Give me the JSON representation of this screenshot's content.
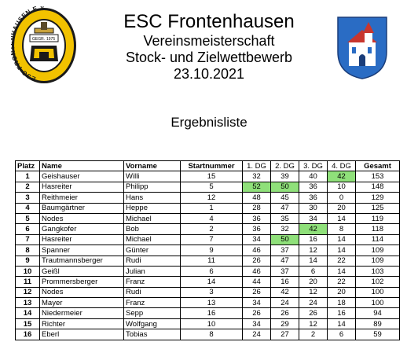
{
  "header": {
    "club": "ESC Frontenhausen",
    "line1": "Vereinsmeisterschaft",
    "line2": "Stock- und Zielwettbewerb",
    "date": "23.10.2021"
  },
  "logo": {
    "ring_text": "ESC-FRONTENHAUSEN E.V.",
    "founded": "GEGR. 1975"
  },
  "list_title": "Ergebnisliste",
  "highlight_color": "#8fe07a",
  "table": {
    "columns": [
      "Platz",
      "Name",
      "Vorname",
      "Startnummer",
      "1. DG",
      "2. DG",
      "3. DG",
      "4. DG",
      "Gesamt"
    ],
    "rows": [
      {
        "platz": "1",
        "name": "Geishauser",
        "vorname": "Willi",
        "start": "15",
        "dg1": "32",
        "dg2": "39",
        "dg3": "40",
        "dg4": "42",
        "total": "153",
        "hl": [
          false,
          false,
          false,
          true
        ]
      },
      {
        "platz": "2",
        "name": "Hasreiter",
        "vorname": "Philipp",
        "start": "5",
        "dg1": "52",
        "dg2": "50",
        "dg3": "36",
        "dg4": "10",
        "total": "148",
        "hl": [
          true,
          true,
          false,
          false
        ]
      },
      {
        "platz": "3",
        "name": "Reithmeier",
        "vorname": "Hans",
        "start": "12",
        "dg1": "48",
        "dg2": "45",
        "dg3": "36",
        "dg4": "0",
        "total": "129",
        "hl": [
          false,
          false,
          false,
          false
        ]
      },
      {
        "platz": "4",
        "name": "Baumgärtner",
        "vorname": "Heppe",
        "start": "1",
        "dg1": "28",
        "dg2": "47",
        "dg3": "30",
        "dg4": "20",
        "total": "125",
        "hl": [
          false,
          false,
          false,
          false
        ]
      },
      {
        "platz": "5",
        "name": "Nodes",
        "vorname": "Michael",
        "start": "4",
        "dg1": "36",
        "dg2": "35",
        "dg3": "34",
        "dg4": "14",
        "total": "119",
        "hl": [
          false,
          false,
          false,
          false
        ]
      },
      {
        "platz": "6",
        "name": "Gangkofer",
        "vorname": "Bob",
        "start": "2",
        "dg1": "36",
        "dg2": "32",
        "dg3": "42",
        "dg4": "8",
        "total": "118",
        "hl": [
          false,
          false,
          true,
          false
        ]
      },
      {
        "platz": "7",
        "name": "Hasreiter",
        "vorname": "Michael",
        "start": "7",
        "dg1": "34",
        "dg2": "50",
        "dg3": "16",
        "dg4": "14",
        "total": "114",
        "hl": [
          false,
          true,
          false,
          false
        ]
      },
      {
        "platz": "8",
        "name": "Spanner",
        "vorname": "Günter",
        "start": "9",
        "dg1": "46",
        "dg2": "37",
        "dg3": "12",
        "dg4": "14",
        "total": "109",
        "hl": [
          false,
          false,
          false,
          false
        ]
      },
      {
        "platz": "9",
        "name": "Trautmannsberger",
        "vorname": "Rudi",
        "start": "11",
        "dg1": "26",
        "dg2": "47",
        "dg3": "14",
        "dg4": "22",
        "total": "109",
        "hl": [
          false,
          false,
          false,
          false
        ]
      },
      {
        "platz": "10",
        "name": "Geißl",
        "vorname": "Julian",
        "start": "6",
        "dg1": "46",
        "dg2": "37",
        "dg3": "6",
        "dg4": "14",
        "total": "103",
        "hl": [
          false,
          false,
          false,
          false
        ]
      },
      {
        "platz": "11",
        "name": "Prommersberger",
        "vorname": "Franz",
        "start": "14",
        "dg1": "44",
        "dg2": "16",
        "dg3": "20",
        "dg4": "22",
        "total": "102",
        "hl": [
          false,
          false,
          false,
          false
        ]
      },
      {
        "platz": "12",
        "name": "Nodes",
        "vorname": "Rudi",
        "start": "3",
        "dg1": "26",
        "dg2": "42",
        "dg3": "12",
        "dg4": "20",
        "total": "100",
        "hl": [
          false,
          false,
          false,
          false
        ]
      },
      {
        "platz": "13",
        "name": "Mayer",
        "vorname": "Franz",
        "start": "13",
        "dg1": "34",
        "dg2": "24",
        "dg3": "24",
        "dg4": "18",
        "total": "100",
        "hl": [
          false,
          false,
          false,
          false
        ]
      },
      {
        "platz": "14",
        "name": "Niedermeier",
        "vorname": "Sepp",
        "start": "16",
        "dg1": "26",
        "dg2": "26",
        "dg3": "26",
        "dg4": "16",
        "total": "94",
        "hl": [
          false,
          false,
          false,
          false
        ]
      },
      {
        "platz": "15",
        "name": "Richter",
        "vorname": "Wolfgang",
        "start": "10",
        "dg1": "34",
        "dg2": "29",
        "dg3": "12",
        "dg4": "14",
        "total": "89",
        "hl": [
          false,
          false,
          false,
          false
        ]
      },
      {
        "platz": "16",
        "name": "Eberl",
        "vorname": "Tobias",
        "start": "8",
        "dg1": "24",
        "dg2": "27",
        "dg3": "2",
        "dg4": "6",
        "total": "59",
        "hl": [
          false,
          false,
          false,
          false
        ]
      }
    ]
  }
}
